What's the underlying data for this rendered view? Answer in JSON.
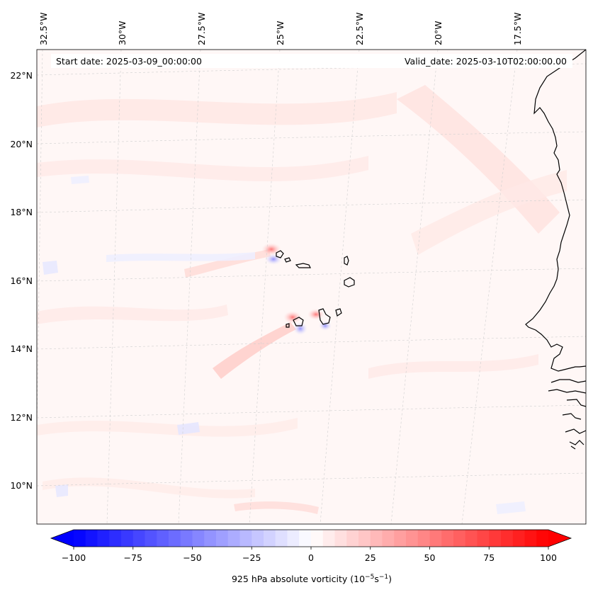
{
  "header": {
    "start_date": "Start date: 2025-03-09_00:00:00",
    "valid_date": "Valid_date: 2025-03-10T02:00:00.00"
  },
  "map": {
    "lon_labels": [
      "32.5°W",
      "30°W",
      "27.5°W",
      "25°W",
      "22.5°W",
      "20°W",
      "17.5°W"
    ],
    "lat_labels": [
      "22°N",
      "20°N",
      "18°N",
      "16°N",
      "14°N",
      "12°N",
      "10°N"
    ],
    "gridlines": "dashed-light-gray",
    "coastline_color": "#000000"
  },
  "colorbar": {
    "label_prefix": "925 hPa absolute vorticity (10",
    "label_exp1": "−5",
    "label_mid": "s",
    "label_exp2": "−1",
    "label_suffix": ")",
    "tick_labels": [
      "−100",
      "−75",
      "−50",
      "−25",
      "0",
      "25",
      "50",
      "75",
      "100"
    ],
    "min_value": -100,
    "max_value": 100,
    "levels": 41,
    "colormap": "bwr",
    "low_color": "#0000ff",
    "mid_color": "#ffffff",
    "high_color": "#ff0000"
  }
}
